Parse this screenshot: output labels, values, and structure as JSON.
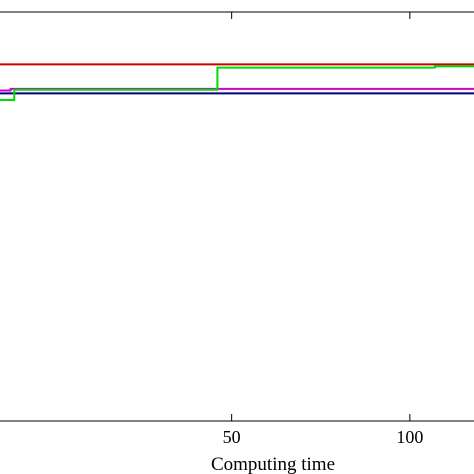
{
  "chart_data": {
    "type": "line",
    "xlabel": "Computing time",
    "ylabel": "",
    "title": "",
    "xlim": [
      -15,
      118
    ],
    "ylim": [
      0,
      1
    ],
    "x_ticks": [
      50,
      100
    ],
    "grid": false,
    "legend": "none",
    "series": [
      {
        "color": "#cc0000",
        "points": [
          [
            -15,
            0.872
          ],
          [
            118,
            0.872
          ]
        ]
      },
      {
        "color": "#000080",
        "points": [
          [
            -15,
            0.801
          ],
          [
            118,
            0.801
          ]
        ]
      },
      {
        "color": "#cc00cc",
        "points": [
          [
            -15,
            0.808
          ],
          [
            -12,
            0.808
          ],
          [
            -12,
            0.812
          ],
          [
            118,
            0.812
          ]
        ]
      },
      {
        "color": "#00dd00",
        "points": [
          [
            -15,
            0.785
          ],
          [
            -11,
            0.785
          ],
          [
            -11,
            0.81
          ],
          [
            46,
            0.81
          ],
          [
            46,
            0.864
          ],
          [
            107,
            0.864
          ],
          [
            107,
            0.867
          ],
          [
            118,
            0.867
          ]
        ]
      }
    ]
  }
}
